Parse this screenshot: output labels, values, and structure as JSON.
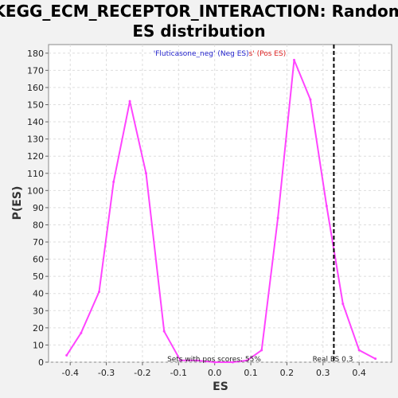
{
  "chart_data": {
    "type": "line",
    "title_line1": "KEGG_ECM_RECEPTOR_INTERACTION: Random",
    "title_line2": "ES distribution",
    "xlabel": "ES",
    "ylabel": "P(ES)",
    "xlim": [
      -0.46,
      0.49
    ],
    "ylim": [
      0,
      185
    ],
    "xticks": [
      -0.4,
      -0.3,
      -0.2,
      -0.1,
      0.0,
      0.1,
      0.2,
      0.3,
      0.4
    ],
    "xtick_labels": [
      "-0.4",
      "-0.3",
      "-0.2",
      "-0.1",
      "0.0",
      "0.1",
      "0.2",
      "0.3",
      "0.4"
    ],
    "yticks": [
      0,
      10,
      20,
      30,
      40,
      50,
      60,
      70,
      80,
      90,
      100,
      110,
      120,
      130,
      140,
      150,
      160,
      170,
      180
    ],
    "grid": true,
    "line_color": "#ff44ff",
    "series": [
      {
        "x": [
          -0.41,
          -0.37,
          -0.32,
          -0.28,
          -0.235,
          -0.19,
          -0.14,
          -0.095,
          -0.05,
          0.0,
          0.05,
          0.09,
          0.13,
          0.175,
          0.22,
          0.265,
          0.31,
          0.355,
          0.4,
          0.445
        ],
        "y": [
          4,
          17,
          41,
          105,
          152,
          110,
          18,
          1,
          1,
          0,
          0,
          1,
          7,
          84,
          176,
          153,
          91,
          34,
          7,
          2
        ]
      }
    ],
    "legend_neg_name": "'Fluticasone_neg' (Neg ES)",
    "legend_pos_name": "s' (Pos ES)",
    "legend_neg_color": "#2222cc",
    "legend_pos_color": "#dd2222",
    "real_es_x": 0.33,
    "real_es_label": "Real ES 0.3",
    "pos_scores_label": "Sets with pos scores: 55%"
  }
}
